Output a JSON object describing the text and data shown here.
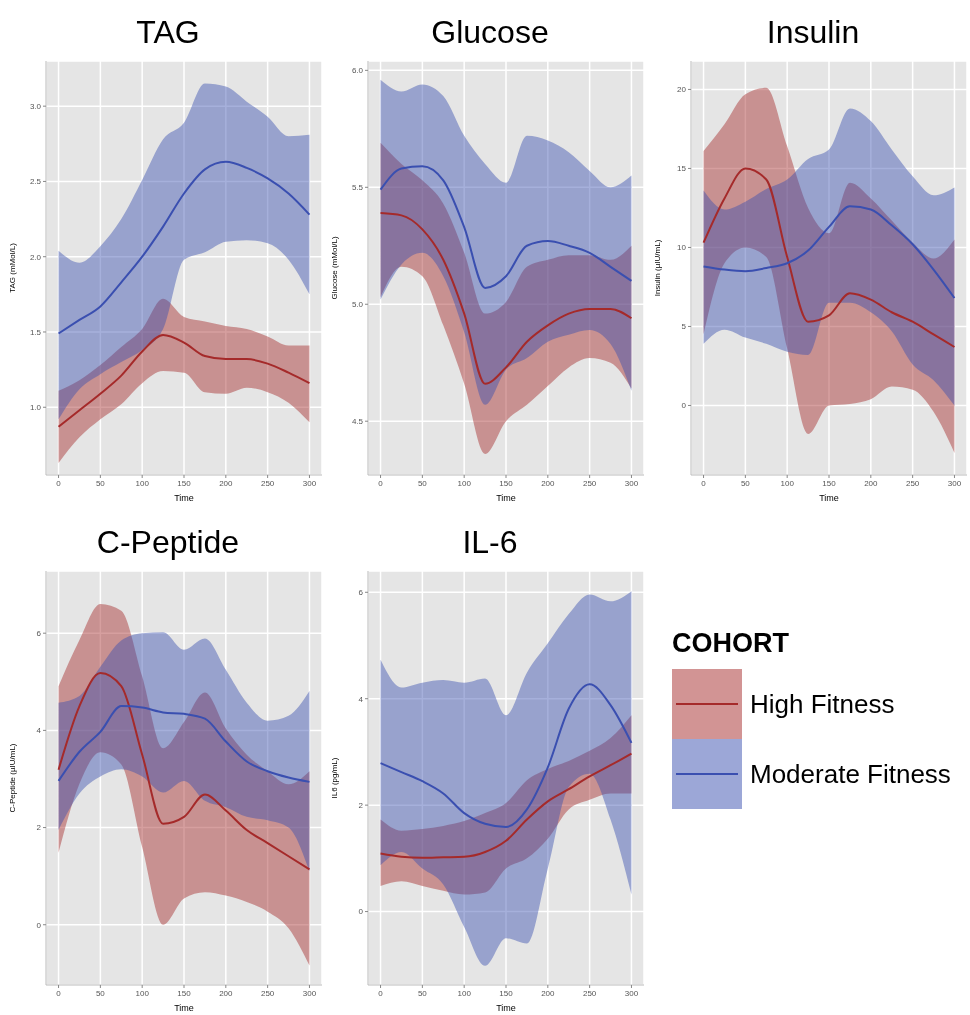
{
  "chart_data": [
    {
      "type": "line",
      "title": "TAG",
      "xlabel": "Time",
      "ylabel": "TAG (mMol/L)",
      "x": [
        0,
        25,
        50,
        75,
        100,
        125,
        150,
        175,
        200,
        225,
        250,
        275,
        300
      ],
      "xlim": [
        -15,
        315
      ],
      "xticks": [
        0,
        50,
        100,
        150,
        200,
        250,
        300
      ],
      "ylim": [
        0.55,
        3.3
      ],
      "yticks": [
        {
          "value": 1,
          "label": "1.0"
        },
        1.5,
        {
          "value": 2,
          "label": "2.0"
        },
        2.5,
        {
          "value": 3,
          "label": "3.0"
        }
      ],
      "grid": true,
      "legend": false,
      "series": [
        {
          "color": "#a52a2a",
          "values": [
            0.87,
            0.98,
            1.09,
            1.21,
            1.37,
            1.48,
            1.43,
            1.34,
            1.32,
            1.32,
            1.29,
            1.23,
            1.16
          ],
          "lower": [
            0.63,
            0.8,
            0.92,
            1.02,
            1.16,
            1.24,
            1.23,
            1.1,
            1.09,
            1.13,
            1.1,
            1.03,
            0.9
          ],
          "upper": [
            1.11,
            1.18,
            1.28,
            1.4,
            1.52,
            1.72,
            1.6,
            1.57,
            1.54,
            1.52,
            1.47,
            1.41,
            1.41
          ]
        },
        {
          "color": "#3a4fb0",
          "values": [
            1.49,
            1.58,
            1.67,
            1.83,
            2.0,
            2.2,
            2.42,
            2.58,
            2.63,
            2.59,
            2.52,
            2.42,
            2.28
          ],
          "lower": [
            0.92,
            1.12,
            1.22,
            1.3,
            1.38,
            1.52,
            1.98,
            2.03,
            2.1,
            2.11,
            2.09,
            1.98,
            1.75
          ],
          "upper": [
            2.04,
            1.96,
            2.07,
            2.25,
            2.51,
            2.78,
            2.89,
            3.15,
            3.13,
            3.03,
            2.93,
            2.8,
            2.81
          ]
        }
      ]
    },
    {
      "type": "line",
      "title": "Glucose",
      "xlabel": "Time",
      "ylabel": "Glucose (mMol/L)",
      "x": [
        0,
        25,
        50,
        75,
        100,
        125,
        150,
        175,
        200,
        225,
        250,
        275,
        300
      ],
      "xlim": [
        -15,
        315
      ],
      "xticks": [
        0,
        50,
        100,
        150,
        200,
        250,
        300
      ],
      "ylim": [
        4.27,
        6.04
      ],
      "yticks": [
        4.5,
        {
          "value": 5,
          "label": "5.0"
        },
        5.5,
        {
          "value": 6,
          "label": "6.0"
        }
      ],
      "grid": true,
      "legend": false,
      "series": [
        {
          "color": "#a52a2a",
          "values": [
            5.39,
            5.38,
            5.32,
            5.19,
            4.96,
            4.66,
            4.73,
            4.84,
            4.91,
            4.96,
            4.98,
            4.98,
            4.94
          ],
          "lower": [
            5.03,
            5.16,
            5.12,
            4.91,
            4.66,
            4.36,
            4.5,
            4.57,
            4.65,
            4.73,
            4.77,
            4.75,
            4.64
          ],
          "upper": [
            5.69,
            5.6,
            5.53,
            5.43,
            5.22,
            4.96,
            5.01,
            5.16,
            5.19,
            5.21,
            5.21,
            5.19,
            5.25
          ]
        },
        {
          "color": "#3a4fb0",
          "values": [
            5.49,
            5.58,
            5.59,
            5.53,
            5.33,
            5.07,
            5.12,
            5.25,
            5.27,
            5.25,
            5.22,
            5.16,
            5.1
          ],
          "lower": [
            5.02,
            5.17,
            5.22,
            5.12,
            4.88,
            4.57,
            4.72,
            4.77,
            4.84,
            4.87,
            4.89,
            4.83,
            4.63
          ],
          "upper": [
            5.96,
            5.91,
            5.94,
            5.89,
            5.72,
            5.6,
            5.52,
            5.72,
            5.7,
            5.65,
            5.57,
            5.5,
            5.55
          ]
        }
      ]
    },
    {
      "type": "line",
      "title": "Insulin",
      "xlabel": "Time",
      "ylabel": "Insulin (µIU/mL)",
      "x": [
        0,
        25,
        50,
        75,
        100,
        125,
        150,
        175,
        200,
        225,
        250,
        275,
        300
      ],
      "xlim": [
        -15,
        315
      ],
      "xticks": [
        0,
        50,
        100,
        150,
        200,
        250,
        300
      ],
      "ylim": [
        -4.4,
        21.8
      ],
      "yticks": [
        0,
        5,
        10,
        15,
        20
      ],
      "grid": true,
      "legend": false,
      "series": [
        {
          "color": "#a52a2a",
          "values": [
            10.3,
            13.1,
            15.0,
            14.3,
            9.4,
            5.3,
            5.7,
            7.1,
            6.7,
            5.9,
            5.3,
            4.5,
            3.7
          ],
          "lower": [
            4.5,
            9.0,
            10.0,
            9.4,
            3.6,
            -1.8,
            0.0,
            0.1,
            0.4,
            1.2,
            1.0,
            -0.4,
            -3.0
          ],
          "upper": [
            16.1,
            17.8,
            19.7,
            20.1,
            16.4,
            12.5,
            10.9,
            14.1,
            13.1,
            11.7,
            10.3,
            9.3,
            10.5
          ]
        },
        {
          "color": "#3a4fb0",
          "values": [
            8.8,
            8.6,
            8.5,
            8.7,
            9.0,
            9.8,
            11.3,
            12.6,
            12.4,
            11.4,
            10.2,
            8.6,
            6.8
          ],
          "lower": [
            3.9,
            4.8,
            4.3,
            3.9,
            3.4,
            3.2,
            6.5,
            6.5,
            5.9,
            4.7,
            2.6,
            1.6,
            0.0
          ],
          "upper": [
            13.6,
            12.4,
            12.9,
            13.7,
            14.3,
            15.6,
            16.2,
            18.8,
            18.0,
            16.2,
            14.5,
            13.3,
            13.8
          ]
        }
      ]
    },
    {
      "type": "line",
      "title": "C-Peptide",
      "xlabel": "Time",
      "ylabel": "C-Peptide (µIU/mL)",
      "x": [
        0,
        25,
        50,
        75,
        100,
        125,
        150,
        175,
        200,
        225,
        250,
        275,
        300
      ],
      "xlim": [
        -15,
        315
      ],
      "xticks": [
        0,
        50,
        100,
        150,
        200,
        250,
        300
      ],
      "ylim": [
        -1.24,
        7.28
      ],
      "yticks": [
        0,
        2,
        4,
        6
      ],
      "grid": true,
      "legend": false,
      "series": [
        {
          "color": "#a52a2a",
          "values": [
            3.19,
            4.5,
            5.18,
            4.91,
            3.5,
            2.08,
            2.22,
            2.68,
            2.35,
            1.95,
            1.68,
            1.41,
            1.14
          ],
          "lower": [
            1.48,
            2.9,
            3.55,
            3.3,
            1.6,
            0.0,
            0.54,
            0.67,
            0.6,
            0.47,
            0.27,
            -0.07,
            -0.84
          ],
          "upper": [
            4.91,
            5.86,
            6.6,
            6.46,
            5.11,
            3.63,
            4.17,
            4.78,
            4.04,
            3.5,
            3.16,
            2.89,
            3.16
          ]
        },
        {
          "color": "#3a4fb0",
          "values": [
            2.96,
            3.56,
            3.97,
            4.5,
            4.47,
            4.37,
            4.34,
            4.24,
            3.77,
            3.36,
            3.16,
            3.03,
            2.94
          ],
          "lower": [
            1.95,
            2.7,
            3.05,
            3.2,
            3.05,
            2.72,
            2.96,
            2.55,
            2.42,
            2.22,
            2.15,
            2.0,
            1.1
          ],
          "upper": [
            4.57,
            4.71,
            5.31,
            5.85,
            6.0,
            6.02,
            5.66,
            5.89,
            5.25,
            4.57,
            4.2,
            4.3,
            4.81
          ]
        }
      ]
    },
    {
      "type": "line",
      "title": "IL-6",
      "xlabel": "Time",
      "ylabel": "IL6 (pg/mL)",
      "x": [
        0,
        25,
        50,
        75,
        100,
        125,
        150,
        175,
        200,
        225,
        250,
        275,
        300
      ],
      "xlim": [
        -15,
        315
      ],
      "xticks": [
        0,
        50,
        100,
        150,
        200,
        250,
        300
      ],
      "ylim": [
        -1.38,
        6.4
      ],
      "yticks": [
        0,
        2,
        4,
        6
      ],
      "grid": true,
      "legend": "right",
      "legend_title": "COHORT",
      "series": [
        {
          "name": "High Fitness",
          "color": "#a52a2a",
          "values": [
            1.09,
            1.03,
            1.01,
            1.02,
            1.03,
            1.12,
            1.33,
            1.73,
            2.07,
            2.3,
            2.54,
            2.75,
            2.97
          ],
          "lower": [
            0.48,
            0.57,
            0.48,
            0.39,
            0.32,
            0.36,
            0.81,
            1.0,
            1.37,
            1.92,
            2.1,
            2.22,
            2.22
          ],
          "upper": [
            1.73,
            1.52,
            1.55,
            1.61,
            1.7,
            1.85,
            2.04,
            2.47,
            2.68,
            2.83,
            3.02,
            3.26,
            3.69
          ]
        },
        {
          "name": "Moderate Fitness",
          "color": "#3a4fb0",
          "values": [
            2.79,
            2.62,
            2.45,
            2.22,
            1.85,
            1.65,
            1.59,
            1.92,
            2.71,
            3.81,
            4.27,
            3.88,
            3.17
          ],
          "lower": [
            0.87,
            1.12,
            0.81,
            0.51,
            -0.29,
            -1.02,
            -0.5,
            -0.6,
            0.81,
            2.34,
            2.59,
            1.73,
            0.32
          ],
          "upper": [
            4.73,
            4.21,
            4.3,
            4.35,
            4.3,
            4.38,
            3.69,
            4.49,
            5.04,
            5.59,
            5.96,
            5.83,
            6.02
          ]
        }
      ]
    }
  ]
}
